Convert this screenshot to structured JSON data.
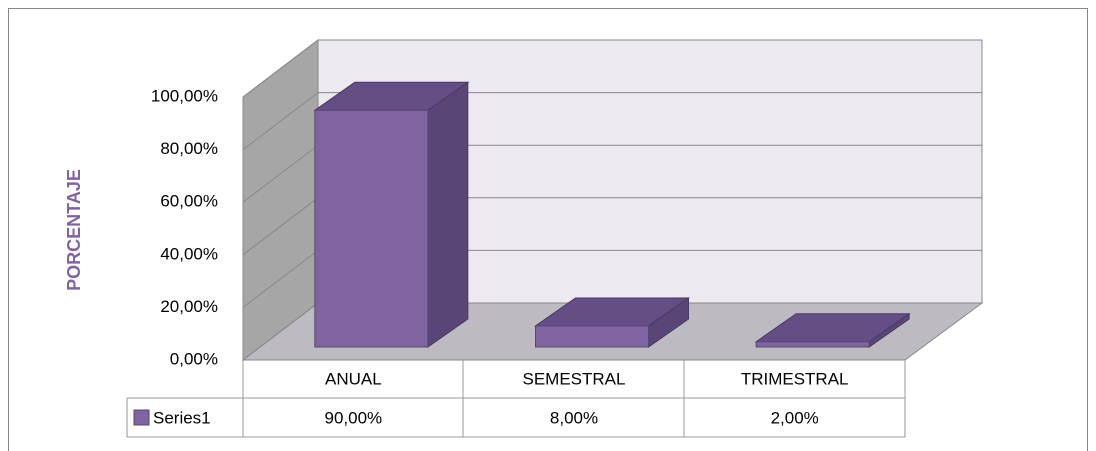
{
  "chart_data": {
    "type": "bar3d",
    "y_axis_label": "PORCENTAJE",
    "categories": [
      "ANUAL",
      "SEMESTRAL",
      "TRIMESTRAL"
    ],
    "series": [
      {
        "name": "Series1",
        "color": "#8064a2",
        "values": [
          90,
          8,
          2
        ],
        "value_labels": [
          "90,00%",
          "8,00%",
          "2,00%"
        ]
      }
    ],
    "ylim": [
      0,
      100
    ],
    "yticks": [
      {
        "value": 0,
        "label": "0,00%"
      },
      {
        "value": 20,
        "label": "20,00%"
      },
      {
        "value": 40,
        "label": "40,00%"
      },
      {
        "value": 60,
        "label": "60,00%"
      },
      {
        "value": 80,
        "label": "80,00%"
      },
      {
        "value": 100,
        "label": "100,00%"
      }
    ],
    "grid": true
  }
}
